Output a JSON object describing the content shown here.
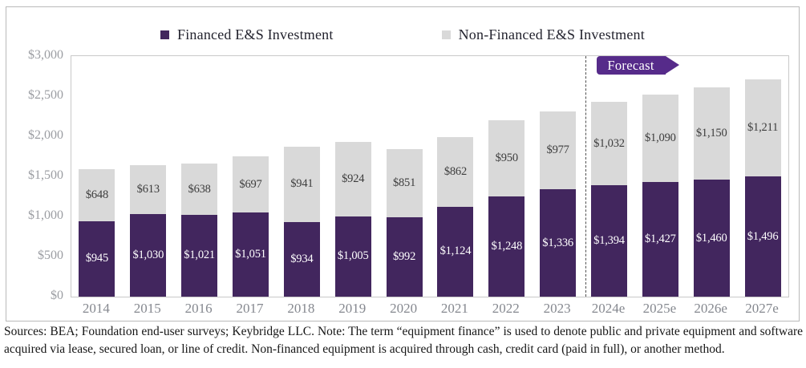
{
  "legend": {
    "items": [
      {
        "label": "Financed E&S Investment",
        "color": "#42265e"
      },
      {
        "label": "Non-Financed E&S Investment",
        "color": "#d9d9d9"
      }
    ]
  },
  "forecast": {
    "label": "Forecast",
    "banner_color": "#562b8a"
  },
  "y_axis": {
    "ticks": [
      "$3,000",
      "$2,500",
      "$2,000",
      "$1,500",
      "$1,000",
      "$500",
      "$0"
    ]
  },
  "chart_data": {
    "type": "bar",
    "stacked": true,
    "categories": [
      "2014",
      "2015",
      "2016",
      "2017",
      "2018",
      "2019",
      "2020",
      "2021",
      "2022",
      "2023",
      "2024e",
      "2025e",
      "2026e",
      "2027e"
    ],
    "series": [
      {
        "name": "Financed E&S Investment",
        "color": "#42265e",
        "label_color": "#ffffff",
        "values": [
          945,
          1030,
          1021,
          1051,
          934,
          1005,
          992,
          1124,
          1248,
          1336,
          1394,
          1427,
          1460,
          1496
        ],
        "labels": [
          "$945",
          "$1,030",
          "$1,021",
          "$1,051",
          "$934",
          "$1,005",
          "$992",
          "$1,124",
          "$1,248",
          "$1,336",
          "$1,394",
          "$1,427",
          "$1,460",
          "$1,496"
        ]
      },
      {
        "name": "Non-Financed E&S Investment",
        "color": "#d9d9d9",
        "label_color": "#3d3d3d",
        "values": [
          648,
          613,
          638,
          697,
          941,
          924,
          851,
          862,
          950,
          977,
          1032,
          1090,
          1150,
          1211
        ],
        "labels": [
          "$648",
          "$613",
          "$638",
          "$697",
          "$941",
          "$924",
          "$851",
          "$862",
          "$950",
          "$977",
          "$1,032",
          "$1,090",
          "$1,150",
          "$1,211"
        ]
      }
    ],
    "ylim": [
      0,
      3000
    ],
    "forecast_start_index": 10,
    "grid": false,
    "legend_position": "top"
  },
  "footer": {
    "line1": "Sources: BEA; Foundation end-user surveys; Keybridge LLC. Note: The term “equipment finance” is used to denote public and private equipment and software",
    "line2": "acquired via lease, secured loan, or line of credit. Non-financed equipment is acquired through cash, credit card (paid in full), or another method."
  }
}
